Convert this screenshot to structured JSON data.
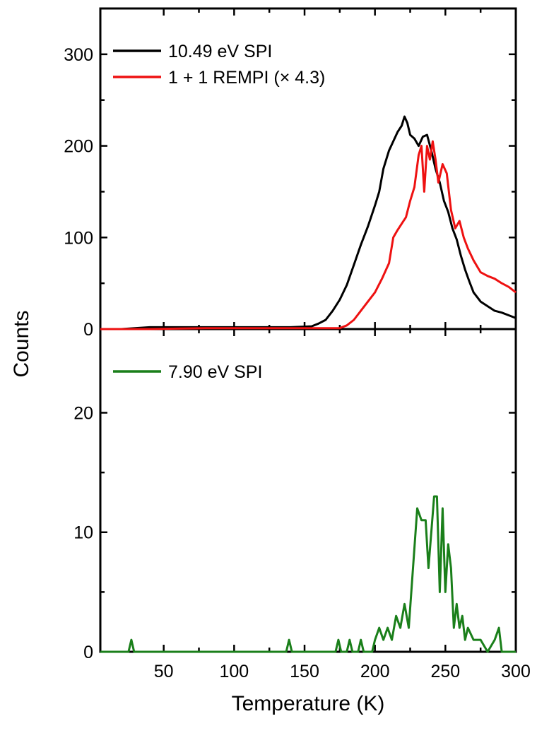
{
  "chart_data": [
    {
      "type": "line",
      "panel": "top",
      "xlabel": "Temperature (K)",
      "ylabel": "Counts",
      "xlim": [
        5,
        300
      ],
      "ylim": [
        0,
        350
      ],
      "x_ticks": [
        50,
        100,
        150,
        200,
        250,
        300
      ],
      "y_ticks": [
        0,
        100,
        200,
        300
      ],
      "legend_position": "top-left",
      "series": [
        {
          "name": "10.49 eV SPI",
          "color": "#000000",
          "x": [
            5,
            20,
            40,
            60,
            80,
            100,
            120,
            140,
            155,
            160,
            165,
            170,
            175,
            180,
            185,
            190,
            195,
            200,
            203,
            206,
            210,
            213,
            216,
            219,
            221,
            223,
            225,
            228,
            231,
            234,
            237,
            240,
            243,
            246,
            249,
            252,
            255,
            258,
            261,
            264,
            267,
            270,
            275,
            280,
            285,
            290,
            295,
            300
          ],
          "y": [
            0,
            0,
            2,
            2,
            2,
            2,
            2,
            2,
            3,
            6,
            10,
            20,
            32,
            48,
            70,
            92,
            112,
            135,
            150,
            175,
            195,
            205,
            215,
            222,
            232,
            225,
            212,
            208,
            200,
            210,
            212,
            195,
            175,
            160,
            140,
            128,
            110,
            98,
            80,
            65,
            52,
            40,
            30,
            25,
            20,
            18,
            15,
            12
          ]
        },
        {
          "name": "1 + 1 REMPI (× 4.3)",
          "color": "#ee1111",
          "x": [
            5,
            40,
            80,
            120,
            160,
            175,
            180,
            185,
            190,
            195,
            200,
            205,
            210,
            213,
            216,
            219,
            222,
            225,
            228,
            231,
            233,
            235,
            237,
            239,
            241,
            243,
            245,
            248,
            251,
            254,
            257,
            260,
            263,
            266,
            270,
            275,
            280,
            285,
            290,
            295,
            300
          ],
          "y": [
            0,
            0,
            1,
            1,
            1,
            1,
            4,
            10,
            20,
            30,
            40,
            55,
            72,
            100,
            108,
            115,
            122,
            140,
            155,
            190,
            200,
            150,
            200,
            185,
            205,
            185,
            160,
            180,
            170,
            130,
            110,
            118,
            100,
            88,
            75,
            62,
            58,
            55,
            50,
            46,
            40
          ]
        }
      ]
    },
    {
      "type": "line",
      "panel": "bottom",
      "xlabel": "Temperature (K)",
      "ylabel": "Counts",
      "xlim": [
        5,
        300
      ],
      "ylim": [
        0,
        27
      ],
      "x_ticks": [
        50,
        100,
        150,
        200,
        250,
        300
      ],
      "y_ticks": [
        0,
        10,
        20
      ],
      "legend_position": "top-left",
      "series": [
        {
          "name": "7.90 eV SPI",
          "color": "#1a7f1a",
          "x": [
            5,
            25,
            27,
            29,
            100,
            137,
            139,
            141,
            172,
            174,
            176,
            180,
            182,
            184,
            188,
            190,
            192,
            198,
            200,
            203,
            206,
            209,
            212,
            215,
            218,
            221,
            224,
            227,
            230,
            233,
            236,
            238,
            240,
            242,
            244,
            246,
            248,
            250,
            252,
            254,
            256,
            258,
            260,
            262,
            264,
            266,
            270,
            275,
            280,
            285,
            288,
            290,
            295,
            300
          ],
          "y": [
            0,
            0,
            1,
            0,
            0,
            0,
            1,
            0,
            0,
            1,
            0,
            0,
            1,
            0,
            0,
            1,
            0,
            0,
            1,
            2,
            1,
            2,
            1,
            3,
            2,
            4,
            2,
            7,
            12,
            11,
            11,
            7,
            10,
            13,
            13,
            5,
            12,
            5,
            9,
            7,
            2,
            4,
            2,
            3,
            1,
            2,
            1,
            1,
            0,
            1,
            2,
            0,
            0,
            0
          ]
        }
      ]
    }
  ]
}
